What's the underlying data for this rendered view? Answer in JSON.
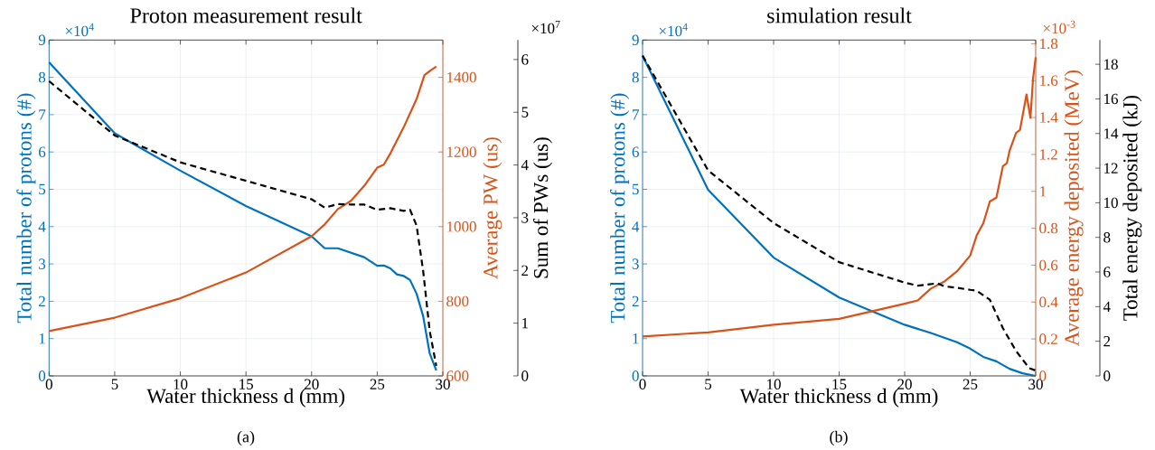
{
  "chart_data": [
    {
      "type": "line",
      "title": "Proton measurement result",
      "xlabel": "Water thickness d (mm)",
      "ylabel": "Total number of protons (#)",
      "y2label": "Average PW (us)",
      "y3label": "Sum of PWs (us)",
      "annotations": [
        "×10$^{4}$",
        "×10$^{7}$",
        "(a)"
      ],
      "xlim": [
        0,
        30
      ],
      "xticks": [
        0,
        5,
        10,
        15,
        20,
        25,
        30
      ],
      "ylim": [
        0,
        9
      ],
      "yticks": [
        0,
        1,
        2,
        3,
        4,
        5,
        6,
        7,
        8,
        9
      ],
      "y2lim": [
        600,
        1500
      ],
      "y2ticks": [
        600,
        800,
        1000,
        1200,
        1400
      ],
      "y3lim": [
        0,
        6.37
      ],
      "y3ticks": [
        0,
        1,
        2,
        3,
        4,
        5,
        6
      ],
      "grid": true,
      "series": [
        {
          "axis": "y",
          "color": "#0072bd",
          "line_style": "solid",
          "x": [
            0,
            5,
            10,
            15,
            20,
            21,
            22,
            23,
            24,
            25,
            25.5,
            26,
            26.5,
            27,
            27.5,
            28,
            28.5,
            29,
            29.5
          ],
          "values": [
            8.4,
            6.5,
            5.5,
            4.55,
            3.74,
            3.42,
            3.42,
            3.3,
            3.18,
            2.95,
            2.96,
            2.88,
            2.72,
            2.68,
            2.57,
            2.2,
            1.6,
            0.6,
            0.15
          ]
        },
        {
          "axis": "y2",
          "color": "#d95319",
          "line_style": "solid",
          "x": [
            0,
            5,
            10,
            15,
            20,
            21,
            22,
            23,
            24,
            25,
            25.5,
            26,
            27,
            28,
            28.6,
            29,
            29.5
          ],
          "values": [
            720,
            756,
            808,
            877,
            974,
            1006,
            1047,
            1069,
            1109,
            1158,
            1166,
            1196,
            1265,
            1342,
            1406,
            1417,
            1429
          ]
        },
        {
          "axis": "y3",
          "color": "#000000",
          "line_style": "dashed",
          "x": [
            0,
            5,
            10,
            15,
            20,
            21,
            22,
            23,
            24,
            25,
            26,
            27,
            27.5,
            28,
            28.5,
            29,
            29.5
          ],
          "values": [
            5.59,
            4.56,
            4.05,
            3.7,
            3.35,
            3.19,
            3.26,
            3.25,
            3.25,
            3.15,
            3.18,
            3.13,
            3.15,
            2.85,
            1.99,
            0.85,
            0.19
          ]
        }
      ]
    },
    {
      "type": "line",
      "title": "simulation result",
      "xlabel": "Water thickness d (mm)",
      "ylabel": "Total number of protons (#)",
      "y2label": "Average energy deposited (MeV)",
      "y3label": "Total energy deposited (kJ)",
      "annotations": [
        "×10$^{4}$",
        "×10$^{-3}$",
        "(b)"
      ],
      "xlim": [
        0,
        30
      ],
      "xticks": [
        0,
        5,
        10,
        15,
        20,
        25,
        30
      ],
      "ylim": [
        0,
        9
      ],
      "yticks": [
        0,
        1,
        2,
        3,
        4,
        5,
        6,
        7,
        8,
        9
      ],
      "y2lim": [
        0,
        1.82
      ],
      "y2ticks": [
        0,
        0.2,
        0.4,
        0.6,
        0.8,
        1,
        1.2,
        1.4,
        1.6,
        1.8
      ],
      "y3lim": [
        0,
        19.4
      ],
      "y3ticks": [
        0,
        2,
        4,
        6,
        8,
        10,
        12,
        14,
        16,
        18
      ],
      "grid": true,
      "series": [
        {
          "axis": "y",
          "color": "#0072bd",
          "line_style": "solid",
          "x": [
            0,
            5,
            10,
            15,
            20,
            22,
            24,
            25,
            26,
            27,
            28,
            29,
            30
          ],
          "values": [
            8.58,
            4.99,
            3.17,
            2.1,
            1.37,
            1.15,
            0.9,
            0.73,
            0.51,
            0.39,
            0.19,
            0.07,
            0
          ]
        },
        {
          "axis": "y2",
          "color": "#d95319",
          "line_style": "solid",
          "x": [
            0,
            5,
            10,
            15,
            20,
            21,
            22,
            23,
            24,
            25,
            25.5,
            26,
            26.5,
            27,
            27.5,
            27.8,
            28,
            28.5,
            28.8,
            29.3,
            29.6,
            29.8,
            30
          ],
          "values": [
            0.214,
            0.236,
            0.277,
            0.309,
            0.391,
            0.409,
            0.473,
            0.51,
            0.567,
            0.652,
            0.762,
            0.827,
            0.945,
            0.966,
            1.137,
            1.153,
            1.218,
            1.316,
            1.333,
            1.525,
            1.398,
            1.613,
            1.727
          ]
        },
        {
          "axis": "y3",
          "color": "#000000",
          "line_style": "dashed",
          "x": [
            0,
            5,
            10,
            15,
            20,
            21,
            22.5,
            23,
            24,
            25,
            25.5,
            26.5,
            27.5,
            28.5,
            29.5,
            30
          ],
          "values": [
            18.5,
            11.87,
            8.83,
            6.57,
            5.39,
            5.21,
            5.35,
            5.18,
            5.09,
            4.97,
            4.92,
            4.4,
            2.75,
            1.44,
            0.45,
            0.31
          ]
        }
      ]
    }
  ]
}
